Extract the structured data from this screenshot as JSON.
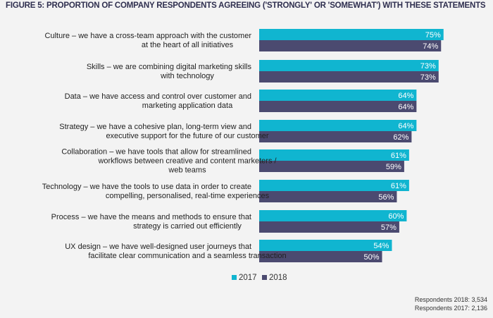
{
  "chart_data": {
    "type": "bar",
    "orientation": "horizontal",
    "title": "FIGURE 5: PROPORTION OF COMPANY RESPONDENTS AGREEING ('STRONGLY' OR 'SOMEWHAT') WITH THESE STATEMENTS",
    "xlabel": "",
    "ylabel": "",
    "xlim": [
      0,
      100
    ],
    "grid": false,
    "legend_position": "bottom-center",
    "value_suffix": "%",
    "categories": [
      [
        "Culture – we have a cross-team approach with the customer",
        "at the heart of all initiatives"
      ],
      [
        "Skills – we are combining digital marketing skills",
        "with technology"
      ],
      [
        "Data – we have access and control over customer and",
        "marketing application data"
      ],
      [
        "Strategy – we have a cohesive plan, long-term view and",
        "executive support for the future of our customer"
      ],
      [
        "Collaboration – we have tools that allow for streamlined",
        "workflows between creative and content marketers /",
        "web teams"
      ],
      [
        "Technology – we have the tools to use data in order to create",
        "compelling, personalised, real-time experiences"
      ],
      [
        "Process – we have the means and methods to ensure that",
        "strategy is carried out efficiently"
      ],
      [
        "UX design – we have well-designed user journeys that",
        "facilitate clear communication and a seamless transaction"
      ]
    ],
    "series": [
      {
        "name": "2017",
        "color": "#10b5d0",
        "values": [
          75,
          73,
          64,
          64,
          61,
          61,
          60,
          54
        ]
      },
      {
        "name": "2018",
        "color": "#4b4a70",
        "values": [
          74,
          73,
          64,
          62,
          59,
          56,
          57,
          50
        ]
      }
    ]
  },
  "footnotes": [
    "Respondents 2018: 3,534",
    "Respondents 2017: 2,136"
  ]
}
